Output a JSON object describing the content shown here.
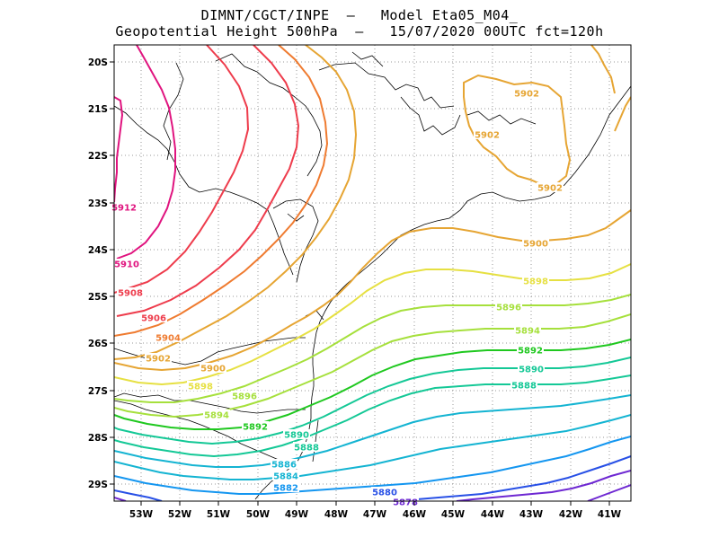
{
  "title_line1": "DIMNT/CGCT/INPE  –   Model Eta05_M04_",
  "title_line2": "Geopotential Height 500hPa  –   15/07/2020 00UTC fct=120h",
  "lat_ticks": [
    "20S",
    "21S",
    "22S",
    "23S",
    "24S",
    "25S",
    "26S",
    "27S",
    "28S",
    "29S"
  ],
  "lon_ticks": [
    "53W",
    "52W",
    "51W",
    "50W",
    "49W",
    "48W",
    "47W",
    "46W",
    "45W",
    "44W",
    "43W",
    "42W",
    "41W"
  ],
  "contour_labels": [
    {
      "text": "5912",
      "color": "#e0147f"
    },
    {
      "text": "5910",
      "color": "#e0147f"
    },
    {
      "text": "5908",
      "color": "#ee3c4c"
    },
    {
      "text": "5906",
      "color": "#ee3c4c"
    },
    {
      "text": "5904",
      "color": "#ef7b30"
    },
    {
      "text": "5902",
      "color": "#e6a533"
    },
    {
      "text": "5902",
      "color": "#e6a533"
    },
    {
      "text": "5902",
      "color": "#e6a533"
    },
    {
      "text": "5902",
      "color": "#e6a533"
    },
    {
      "text": "5900",
      "color": "#e6a533"
    },
    {
      "text": "5900",
      "color": "#e6a533"
    },
    {
      "text": "5898",
      "color": "#e6e042"
    },
    {
      "text": "5898",
      "color": "#e6e042"
    },
    {
      "text": "5896",
      "color": "#a6e03c"
    },
    {
      "text": "5896",
      "color": "#a6e03c"
    },
    {
      "text": "5894",
      "color": "#a6e03c"
    },
    {
      "text": "5894",
      "color": "#a6e03c"
    },
    {
      "text": "5892",
      "color": "#1fc81f"
    },
    {
      "text": "5892",
      "color": "#1fc81f"
    },
    {
      "text": "5890",
      "color": "#14c896"
    },
    {
      "text": "5890",
      "color": "#14c896"
    },
    {
      "text": "5888",
      "color": "#14c896"
    },
    {
      "text": "5888",
      "color": "#14c896"
    },
    {
      "text": "5886",
      "color": "#14b4d2"
    },
    {
      "text": "5884",
      "color": "#14b4d2"
    },
    {
      "text": "5882",
      "color": "#1496f0"
    },
    {
      "text": "5880",
      "color": "#2850e6"
    },
    {
      "text": "5878",
      "color": "#6e28d2"
    }
  ]
}
